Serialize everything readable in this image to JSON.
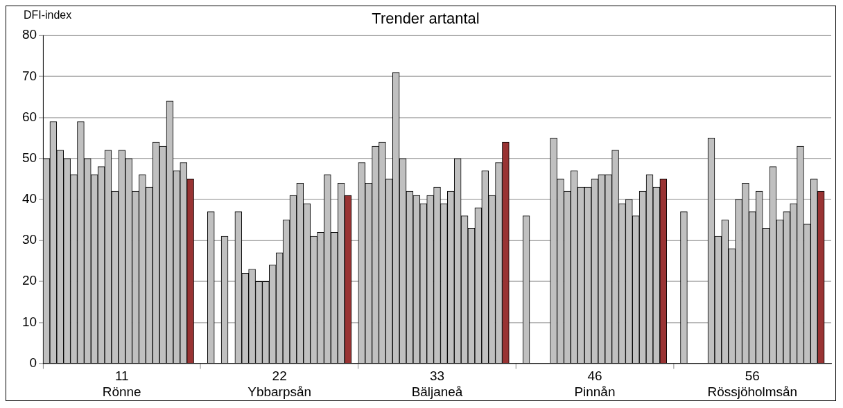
{
  "chart_data": {
    "type": "bar",
    "title": "Trender artantal",
    "ylabel": "DFI-index",
    "categories": [
      null,
      null,
      null,
      null,
      null,
      null,
      null,
      null,
      null,
      null,
      null,
      "11 Rönne",
      null,
      null,
      null,
      null,
      null,
      null,
      null,
      null,
      null,
      null,
      null,
      null,
      null,
      null,
      null,
      null,
      null,
      null,
      null,
      null,
      null,
      null,
      "22 Ybbarpsån",
      null,
      null,
      null,
      null,
      null,
      null,
      null,
      null,
      null,
      null,
      null,
      null,
      null,
      null,
      null,
      null,
      null,
      null,
      null,
      null,
      null,
      null,
      "33 Bäljaneå",
      null,
      null,
      null,
      null,
      null,
      null,
      null,
      null,
      null,
      null,
      null,
      null,
      null,
      null,
      null,
      null,
      null,
      null,
      null,
      null,
      null,
      null,
      "46 Pinnån",
      null,
      null,
      null,
      null,
      null,
      null,
      null,
      null,
      null,
      null,
      null,
      null,
      null,
      null,
      null,
      null,
      null,
      null,
      null,
      null,
      null,
      null,
      "56 Rössjöholmsån",
      null,
      null,
      null,
      null,
      null,
      null,
      null,
      null,
      null,
      null,
      null
    ],
    "values": [
      50,
      59,
      52,
      50,
      46,
      59,
      50,
      46,
      48,
      52,
      42,
      52,
      50,
      42,
      46,
      43,
      54,
      53,
      64,
      47,
      49,
      45,
      null,
      null,
      37,
      null,
      31,
      null,
      37,
      22,
      23,
      20,
      20,
      24,
      27,
      35,
      41,
      44,
      39,
      31,
      32,
      46,
      32,
      44,
      41,
      null,
      49,
      44,
      53,
      54,
      45,
      71,
      50,
      42,
      41,
      39,
      41,
      43,
      39,
      42,
      50,
      36,
      33,
      38,
      47,
      41,
      49,
      54,
      null,
      null,
      36,
      null,
      null,
      null,
      55,
      45,
      42,
      47,
      43,
      43,
      45,
      46,
      46,
      52,
      39,
      40,
      36,
      42,
      46,
      43,
      45,
      null,
      null,
      37,
      null,
      null,
      null,
      55,
      31,
      35,
      28,
      40,
      44,
      37,
      42,
      33,
      48,
      35,
      37,
      39,
      53,
      34,
      45,
      42,
      null
    ],
    "colors": [
      "#c0c0c0",
      "#c0c0c0",
      "#c0c0c0",
      "#c0c0c0",
      "#c0c0c0",
      "#c0c0c0",
      "#c0c0c0",
      "#c0c0c0",
      "#c0c0c0",
      "#c0c0c0",
      "#c0c0c0",
      "#c0c0c0",
      "#c0c0c0",
      "#c0c0c0",
      "#c0c0c0",
      "#c0c0c0",
      "#c0c0c0",
      "#c0c0c0",
      "#c0c0c0",
      "#c0c0c0",
      "#c0c0c0",
      "#993333",
      "#c0c0c0",
      "#c0c0c0",
      "#c0c0c0",
      "#c0c0c0",
      "#c0c0c0",
      "#c0c0c0",
      "#c0c0c0",
      "#c0c0c0",
      "#c0c0c0",
      "#c0c0c0",
      "#c0c0c0",
      "#c0c0c0",
      "#c0c0c0",
      "#c0c0c0",
      "#c0c0c0",
      "#c0c0c0",
      "#c0c0c0",
      "#c0c0c0",
      "#c0c0c0",
      "#c0c0c0",
      "#c0c0c0",
      "#c0c0c0",
      "#993333",
      "#c0c0c0",
      "#c0c0c0",
      "#c0c0c0",
      "#c0c0c0",
      "#c0c0c0",
      "#c0c0c0",
      "#c0c0c0",
      "#c0c0c0",
      "#c0c0c0",
      "#c0c0c0",
      "#c0c0c0",
      "#c0c0c0",
      "#c0c0c0",
      "#c0c0c0",
      "#c0c0c0",
      "#c0c0c0",
      "#c0c0c0",
      "#c0c0c0",
      "#c0c0c0",
      "#c0c0c0",
      "#c0c0c0",
      "#c0c0c0",
      "#993333",
      "#c0c0c0",
      "#c0c0c0",
      "#c0c0c0",
      "#c0c0c0",
      "#c0c0c0",
      "#c0c0c0",
      "#c0c0c0",
      "#c0c0c0",
      "#c0c0c0",
      "#c0c0c0",
      "#c0c0c0",
      "#c0c0c0",
      "#c0c0c0",
      "#c0c0c0",
      "#c0c0c0",
      "#c0c0c0",
      "#c0c0c0",
      "#c0c0c0",
      "#c0c0c0",
      "#c0c0c0",
      "#c0c0c0",
      "#c0c0c0",
      "#993333",
      "#c0c0c0",
      "#c0c0c0",
      "#c0c0c0",
      "#c0c0c0",
      "#c0c0c0",
      "#c0c0c0",
      "#c0c0c0",
      "#c0c0c0",
      "#c0c0c0",
      "#c0c0c0",
      "#c0c0c0",
      "#c0c0c0",
      "#c0c0c0",
      "#c0c0c0",
      "#c0c0c0",
      "#c0c0c0",
      "#c0c0c0",
      "#c0c0c0",
      "#c0c0c0",
      "#c0c0c0",
      "#c0c0c0",
      "#c0c0c0",
      "#993333",
      "#c0c0c0"
    ],
    "ylim": [
      0,
      80
    ],
    "yticks": [
      0,
      10,
      20,
      30,
      40,
      50,
      60,
      70,
      80
    ],
    "grid": "y",
    "legend": false
  }
}
